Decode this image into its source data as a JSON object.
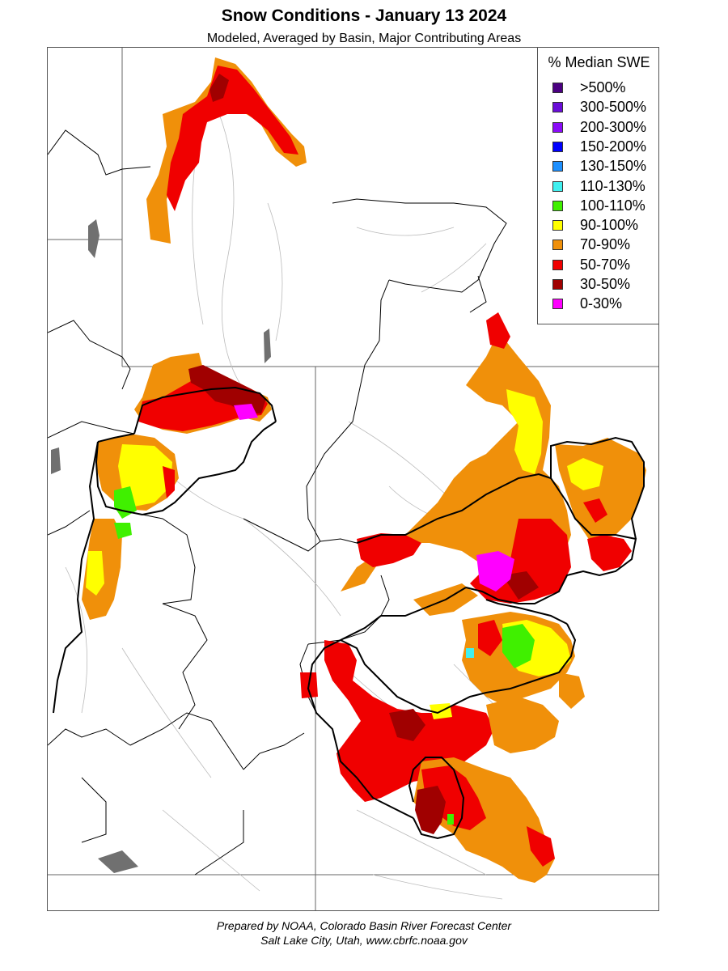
{
  "title": "Snow Conditions - January 13 2024",
  "subtitle": "Modeled, Averaged by Basin, Major Contributing Areas",
  "legend": {
    "title": "% Median SWE",
    "items": [
      {
        "label": ">500%",
        "color": "#4b0082"
      },
      {
        "label": "300-500%",
        "color": "#6a0dd8"
      },
      {
        "label": "200-300%",
        "color": "#8a0cf8"
      },
      {
        "label": "150-200%",
        "color": "#0000ff"
      },
      {
        "label": "130-150%",
        "color": "#1e90ff"
      },
      {
        "label": "110-130%",
        "color": "#40f0f0"
      },
      {
        "label": "100-110%",
        "color": "#40f000"
      },
      {
        "label": "90-100%",
        "color": "#ffff00"
      },
      {
        "label": "70-90%",
        "color": "#f0900a"
      },
      {
        "label": "50-70%",
        "color": "#f00000"
      },
      {
        "label": "30-50%",
        "color": "#a00000"
      },
      {
        "label": "0-30%",
        "color": "#ff00ff"
      }
    ]
  },
  "footer": {
    "line1": "Prepared by NOAA, Colorado Basin River Forecast Center",
    "line2": "Salt Lake City, Utah, www.cbrfc.noaa.gov"
  }
}
